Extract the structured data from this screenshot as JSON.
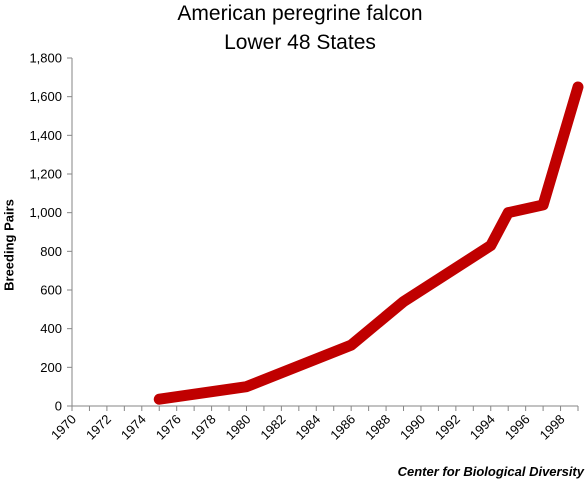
{
  "chart_data": {
    "type": "line",
    "title": "American peregrine falcon",
    "subtitle": "Lower 48 States",
    "xlabel": "",
    "ylabel": "Breeding Pairs",
    "source": "Center for Biological Diversity",
    "xlim": [
      1970,
      1999
    ],
    "ylim": [
      0,
      1800
    ],
    "x_ticks": [
      "1970",
      "1972",
      "1974",
      "1976",
      "1978",
      "1980",
      "1982",
      "1984",
      "1986",
      "1988",
      "1990",
      "1992",
      "1994",
      "1996",
      "1998"
    ],
    "y_ticks": [
      "0",
      "200",
      "400",
      "600",
      "800",
      "1,000",
      "1,200",
      "1,400",
      "1,600",
      "1,800"
    ],
    "grid": false,
    "series": [
      {
        "color": "#c00000",
        "x": [
          1975,
          1980,
          1986,
          1989,
          1994,
          1995,
          1997,
          1999
        ],
        "y": [
          35,
          100,
          315,
          540,
          830,
          1000,
          1040,
          1650
        ]
      }
    ]
  }
}
